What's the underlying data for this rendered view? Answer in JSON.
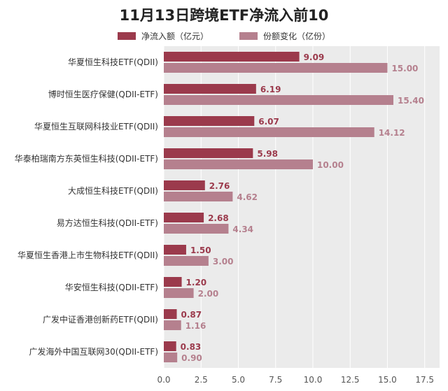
{
  "chart_data": {
    "type": "bar",
    "orientation": "horizontal",
    "title": "11月13日跨境ETF净流入前10",
    "categories": [
      "华夏恒生科技ETF(QDII)",
      "博时恒生医疗保健(QDII-ETF)",
      "华夏恒生互联网科技业ETF(QDII)",
      "华泰柏瑞南方东英恒生科技(QDII-ETF)",
      "大成恒生科技ETF(QDII)",
      "易方达恒生科技(QDII-ETF)",
      "华夏恒生香港上市生物科技ETF(QDII)",
      "华安恒生科技(QDII-ETF)",
      "广发中证香港创新药ETF(QDII)",
      "广发海外中国互联网30(QDII-ETF)"
    ],
    "series": [
      {
        "name": "净流入额（亿元）",
        "color": "#9b3a4c",
        "values": [
          9.09,
          6.19,
          6.07,
          5.98,
          2.76,
          2.68,
          1.5,
          1.2,
          0.87,
          0.83
        ],
        "labels": [
          "9.09",
          "6.19",
          "6.07",
          "5.98",
          "2.76",
          "2.68",
          "1.50",
          "1.20",
          "0.87",
          "0.83"
        ]
      },
      {
        "name": "份额变化（亿份）",
        "color": "#b5808e",
        "values": [
          15.0,
          15.4,
          14.12,
          10.0,
          4.62,
          4.34,
          3.0,
          2.0,
          1.16,
          0.9
        ],
        "labels": [
          "15.00",
          "15.40",
          "14.12",
          "10.00",
          "4.62",
          "4.34",
          "3.00",
          "2.00",
          "1.16",
          "0.90"
        ]
      }
    ],
    "xlim": [
      0,
      18.5
    ],
    "xticks": [
      "0.0",
      "2.5",
      "5.0",
      "7.5",
      "10.0",
      "12.5",
      "15.0",
      "17.5"
    ],
    "xtick_values": [
      0,
      2.5,
      5,
      7.5,
      10,
      12.5,
      15,
      17.5
    ],
    "grid": true,
    "legend_position": "top"
  },
  "plot_background": "#ebebeb",
  "grid_color": "#ffffff"
}
